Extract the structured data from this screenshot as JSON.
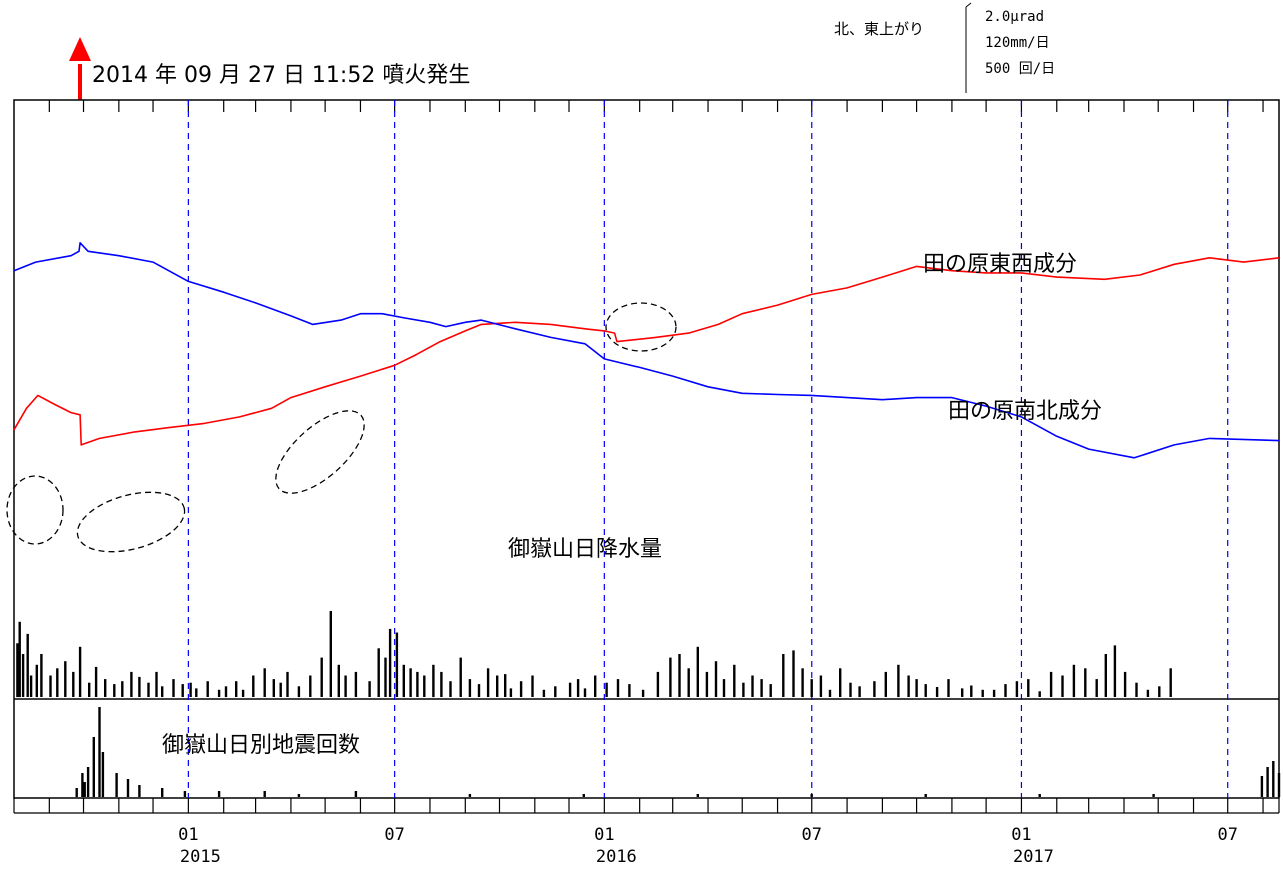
{
  "chart_data": {
    "type": "line",
    "title": "",
    "eruption_annotation": {
      "date": "2014-09-27",
      "label": "2014 年 09 月 27 日 11:52 噴火発生"
    },
    "scale_legend": {
      "direction": "北、東上がり",
      "lines": [
        "2.0μrad",
        "120mm/日",
        "500 回/日"
      ]
    },
    "x_axis": {
      "range": [
        "2014-08-01",
        "2017-08-15"
      ],
      "tick_labels": [
        {
          "date": "2015-01-01",
          "month": "01",
          "year": "2015"
        },
        {
          "date": "2015-07-01",
          "month": "07",
          "year": ""
        },
        {
          "date": "2016-01-01",
          "month": "01",
          "year": "2016"
        },
        {
          "date": "2016-07-01",
          "month": "07",
          "year": ""
        },
        {
          "date": "2017-01-01",
          "month": "01",
          "year": "2017"
        },
        {
          "date": "2017-07-01",
          "month": "07",
          "year": ""
        }
      ]
    },
    "series": [
      {
        "name": "田の原東西成分",
        "color": "#ff0000",
        "unit": "μrad",
        "points": [
          [
            "2014-08-01",
            -2.6
          ],
          [
            "2014-08-12",
            -2.1
          ],
          [
            "2014-08-22",
            -1.8
          ],
          [
            "2014-09-05",
            -2.0
          ],
          [
            "2014-09-20",
            -2.2
          ],
          [
            "2014-09-28",
            -2.25
          ],
          [
            "2014-09-29",
            -2.95
          ],
          [
            "2014-10-15",
            -2.8
          ],
          [
            "2014-11-15",
            -2.65
          ],
          [
            "2014-12-15",
            -2.55
          ],
          [
            "2015-01-15",
            -2.45
          ],
          [
            "2015-02-15",
            -2.3
          ],
          [
            "2015-03-15",
            -2.1
          ],
          [
            "2015-04-01",
            -1.85
          ],
          [
            "2015-05-01",
            -1.6
          ],
          [
            "2015-06-01",
            -1.35
          ],
          [
            "2015-07-01",
            -1.1
          ],
          [
            "2015-07-20",
            -0.85
          ],
          [
            "2015-08-10",
            -0.55
          ],
          [
            "2015-09-01",
            -0.3
          ],
          [
            "2015-09-15",
            -0.15
          ],
          [
            "2015-10-15",
            -0.1
          ],
          [
            "2015-11-15",
            -0.15
          ],
          [
            "2015-12-15",
            -0.25
          ],
          [
            "2016-01-01",
            -0.3
          ],
          [
            "2016-01-10",
            -0.35
          ],
          [
            "2016-01-12",
            -0.55
          ],
          [
            "2016-02-15",
            -0.45
          ],
          [
            "2016-03-15",
            -0.35
          ],
          [
            "2016-04-10",
            -0.15
          ],
          [
            "2016-05-01",
            0.1
          ],
          [
            "2016-06-01",
            0.3
          ],
          [
            "2016-07-01",
            0.55
          ],
          [
            "2016-08-01",
            0.7
          ],
          [
            "2016-09-01",
            0.95
          ],
          [
            "2016-10-01",
            1.2
          ],
          [
            "2016-11-01",
            1.1
          ],
          [
            "2016-12-01",
            1.05
          ],
          [
            "2017-01-01",
            1.05
          ],
          [
            "2017-02-01",
            0.95
          ],
          [
            "2017-03-15",
            0.9
          ],
          [
            "2017-04-15",
            1.0
          ],
          [
            "2017-05-15",
            1.25
          ],
          [
            "2017-06-15",
            1.4
          ],
          [
            "2017-07-15",
            1.3
          ],
          [
            "2017-08-15",
            1.4
          ]
        ]
      },
      {
        "name": "田の原南北成分",
        "color": "#0000ff",
        "unit": "μrad",
        "points": [
          [
            "2014-08-01",
            1.1
          ],
          [
            "2014-08-20",
            1.3
          ],
          [
            "2014-09-20",
            1.45
          ],
          [
            "2014-09-27",
            1.55
          ],
          [
            "2014-09-28",
            1.75
          ],
          [
            "2014-10-05",
            1.55
          ],
          [
            "2014-11-01",
            1.45
          ],
          [
            "2014-12-01",
            1.3
          ],
          [
            "2015-01-01",
            0.85
          ],
          [
            "2015-02-01",
            0.6
          ],
          [
            "2015-03-01",
            0.35
          ],
          [
            "2015-04-01",
            0.05
          ],
          [
            "2015-04-20",
            -0.15
          ],
          [
            "2015-05-15",
            -0.05
          ],
          [
            "2015-06-01",
            0.1
          ],
          [
            "2015-06-20",
            0.1
          ],
          [
            "2015-07-10",
            0.0
          ],
          [
            "2015-08-01",
            -0.1
          ],
          [
            "2015-08-15",
            -0.2
          ],
          [
            "2015-09-01",
            -0.1
          ],
          [
            "2015-09-15",
            -0.05
          ],
          [
            "2015-10-15",
            -0.25
          ],
          [
            "2015-11-15",
            -0.45
          ],
          [
            "2015-12-15",
            -0.6
          ],
          [
            "2016-01-01",
            -0.95
          ],
          [
            "2016-02-01",
            -1.15
          ],
          [
            "2016-03-01",
            -1.35
          ],
          [
            "2016-04-01",
            -1.6
          ],
          [
            "2016-05-01",
            -1.75
          ],
          [
            "2016-06-01",
            -1.78
          ],
          [
            "2016-07-01",
            -1.8
          ],
          [
            "2016-08-01",
            -1.85
          ],
          [
            "2016-09-01",
            -1.9
          ],
          [
            "2016-10-01",
            -1.85
          ],
          [
            "2016-11-01",
            -1.85
          ],
          [
            "2016-12-01",
            -2.05
          ],
          [
            "2017-01-01",
            -2.3
          ],
          [
            "2017-02-01",
            -2.75
          ],
          [
            "2017-03-01",
            -3.05
          ],
          [
            "2017-04-10",
            -3.25
          ],
          [
            "2017-05-15",
            -2.95
          ],
          [
            "2017-06-15",
            -2.8
          ],
          [
            "2017-08-15",
            -2.85
          ]
        ]
      }
    ],
    "annotations": [
      "御嶽山日降水量",
      "御嶽山日別地震回数"
    ],
    "precipitation": {
      "label": "御嶽山日降水量",
      "unit": "mm/日",
      "values": [
        [
          3,
          75
        ],
        [
          5,
          105
        ],
        [
          8,
          60
        ],
        [
          12,
          88
        ],
        [
          15,
          30
        ],
        [
          20,
          45
        ],
        [
          24,
          60
        ],
        [
          32,
          30
        ],
        [
          38,
          40
        ],
        [
          45,
          50
        ],
        [
          52,
          35
        ],
        [
          58,
          70
        ],
        [
          66,
          20
        ],
        [
          72,
          42
        ],
        [
          80,
          25
        ],
        [
          88,
          18
        ],
        [
          95,
          22
        ],
        [
          103,
          35
        ],
        [
          110,
          28
        ],
        [
          118,
          20
        ],
        [
          125,
          35
        ],
        [
          130,
          15
        ],
        [
          140,
          25
        ],
        [
          148,
          18
        ],
        [
          155,
          20
        ],
        [
          160,
          12
        ],
        [
          170,
          22
        ],
        [
          180,
          10
        ],
        [
          186,
          15
        ],
        [
          195,
          22
        ],
        [
          201,
          10
        ],
        [
          210,
          30
        ],
        [
          220,
          40
        ],
        [
          228,
          25
        ],
        [
          234,
          20
        ],
        [
          240,
          35
        ],
        [
          250,
          15
        ],
        [
          260,
          30
        ],
        [
          270,
          55
        ],
        [
          278,
          120
        ],
        [
          285,
          45
        ],
        [
          291,
          30
        ],
        [
          300,
          35
        ],
        [
          312,
          22
        ],
        [
          320,
          68
        ],
        [
          326,
          55
        ],
        [
          330,
          95
        ],
        [
          336,
          90
        ],
        [
          342,
          45
        ],
        [
          348,
          40
        ],
        [
          354,
          35
        ],
        [
          360,
          30
        ],
        [
          368,
          45
        ],
        [
          375,
          35
        ],
        [
          383,
          22
        ],
        [
          392,
          55
        ],
        [
          400,
          25
        ],
        [
          408,
          18
        ],
        [
          416,
          40
        ],
        [
          424,
          30
        ],
        [
          431,
          32
        ],
        [
          436,
          12
        ],
        [
          445,
          22
        ],
        [
          455,
          30
        ],
        [
          465,
          10
        ],
        [
          475,
          15
        ],
        [
          488,
          20
        ],
        [
          495,
          25
        ],
        [
          501,
          12
        ],
        [
          510,
          30
        ],
        [
          520,
          20
        ],
        [
          530,
          25
        ],
        [
          540,
          18
        ],
        [
          552,
          10
        ],
        [
          565,
          35
        ],
        [
          576,
          55
        ],
        [
          584,
          60
        ],
        [
          592,
          40
        ],
        [
          600,
          70
        ],
        [
          608,
          35
        ],
        [
          616,
          50
        ],
        [
          623,
          25
        ],
        [
          632,
          45
        ],
        [
          640,
          20
        ],
        [
          648,
          30
        ],
        [
          656,
          25
        ],
        [
          664,
          18
        ],
        [
          675,
          60
        ],
        [
          684,
          65
        ],
        [
          692,
          40
        ],
        [
          700,
          25
        ],
        [
          708,
          30
        ],
        [
          716,
          10
        ],
        [
          725,
          40
        ],
        [
          734,
          20
        ],
        [
          742,
          15
        ],
        [
          755,
          22
        ],
        [
          765,
          35
        ],
        [
          776,
          45
        ],
        [
          785,
          30
        ],
        [
          792,
          25
        ],
        [
          800,
          18
        ],
        [
          810,
          14
        ],
        [
          820,
          25
        ],
        [
          832,
          12
        ],
        [
          840,
          16
        ],
        [
          850,
          10
        ],
        [
          860,
          10
        ],
        [
          870,
          18
        ],
        [
          880,
          22
        ],
        [
          890,
          25
        ],
        [
          900,
          8
        ],
        [
          910,
          35
        ],
        [
          920,
          30
        ],
        [
          930,
          45
        ],
        [
          940,
          40
        ],
        [
          950,
          25
        ],
        [
          958,
          60
        ],
        [
          966,
          72
        ],
        [
          975,
          35
        ],
        [
          985,
          20
        ],
        [
          995,
          10
        ],
        [
          1005,
          15
        ],
        [
          1015,
          40
        ]
      ]
    },
    "earthquakes": {
      "label": "御嶽山日別地震回数",
      "unit": "回/日",
      "values": [
        [
          55,
          3
        ],
        [
          60,
          8
        ],
        [
          62,
          5
        ],
        [
          65,
          10
        ],
        [
          70,
          20
        ],
        [
          75,
          30
        ],
        [
          78,
          15
        ],
        [
          90,
          8
        ],
        [
          100,
          6
        ],
        [
          110,
          4
        ],
        [
          130,
          3
        ],
        [
          150,
          2
        ],
        [
          180,
          2
        ],
        [
          220,
          2
        ],
        [
          250,
          1
        ],
        [
          300,
          2
        ],
        [
          400,
          1
        ],
        [
          500,
          1
        ],
        [
          600,
          1
        ],
        [
          700,
          1
        ],
        [
          800,
          1
        ],
        [
          900,
          1
        ],
        [
          1000,
          1
        ],
        [
          1095,
          7
        ],
        [
          1100,
          10
        ],
        [
          1105,
          12
        ],
        [
          1110,
          8
        ]
      ]
    }
  }
}
